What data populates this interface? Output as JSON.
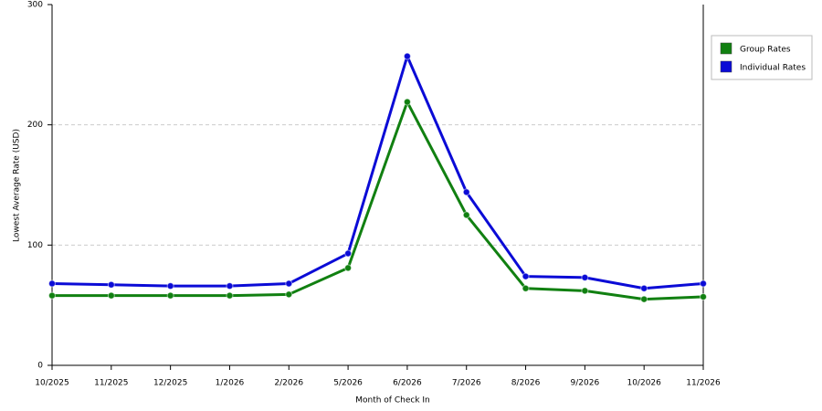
{
  "chart_data": {
    "type": "line",
    "x_label": "Month of Check In",
    "y_label": "Lowest Average Rate (USD)",
    "categories": [
      "10/2025",
      "11/2025",
      "12/2025",
      "1/2026",
      "2/2026",
      "5/2026",
      "6/2026",
      "7/2026",
      "8/2026",
      "9/2026",
      "10/2026",
      "11/2026"
    ],
    "series": [
      {
        "name": "Group Rates",
        "color": "#118011",
        "values": [
          58,
          58,
          58,
          58,
          59,
          81,
          219,
          125,
          64,
          62,
          55,
          57
        ]
      },
      {
        "name": "Individual Rates",
        "color": "#0b0bd6",
        "values": [
          68,
          67,
          66,
          66,
          68,
          93,
          257,
          144,
          74,
          73,
          64,
          68
        ]
      }
    ],
    "ylim": [
      0,
      300
    ],
    "yticks": [
      0,
      100,
      200,
      300
    ],
    "grid": true,
    "legend": "right"
  }
}
